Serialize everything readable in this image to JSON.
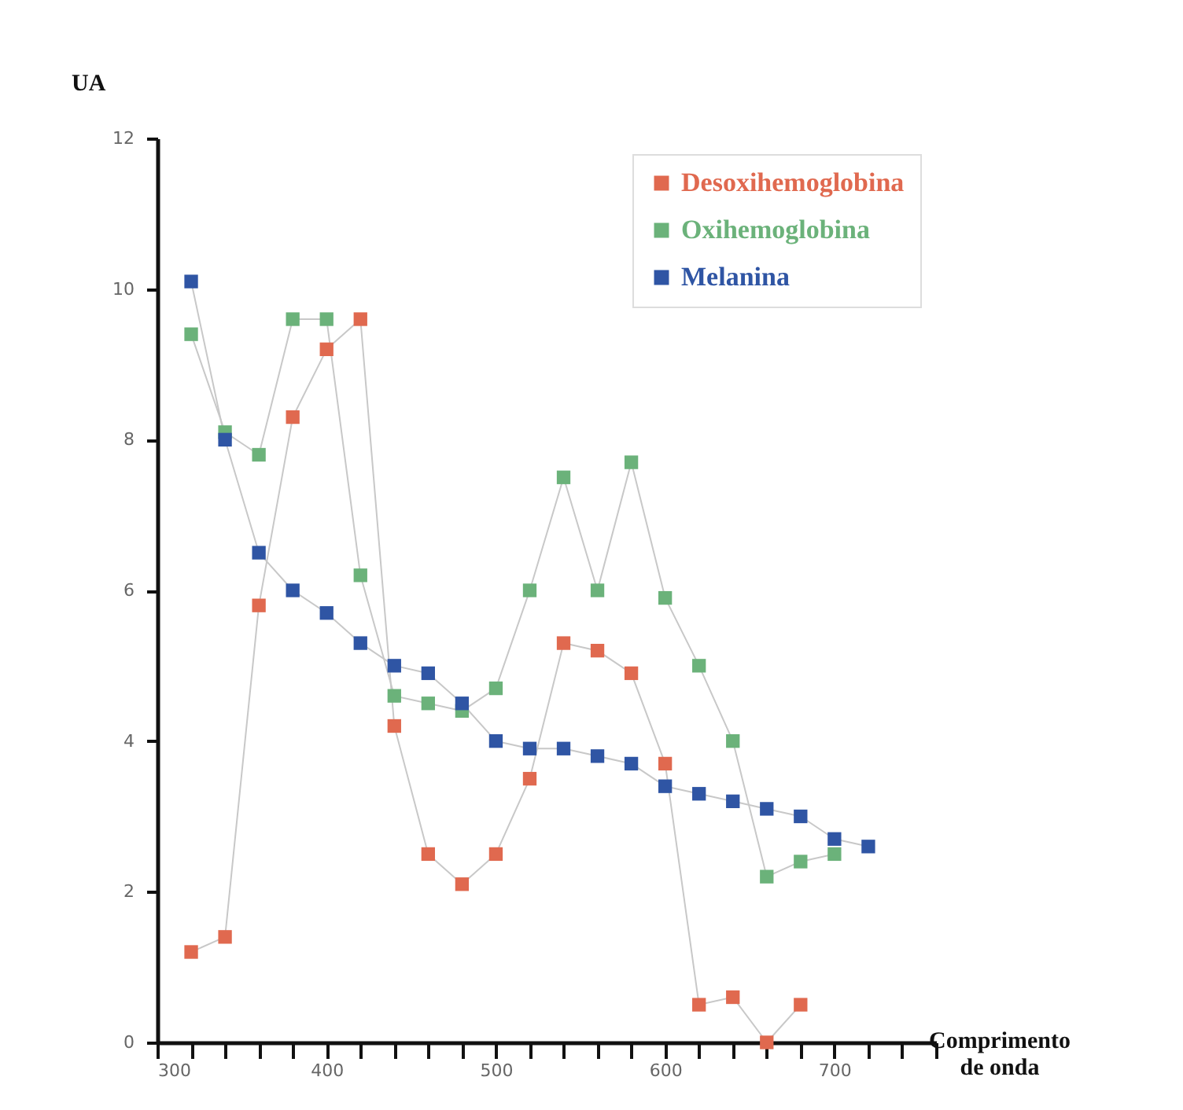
{
  "chart_data": {
    "type": "line",
    "xlabel": "Comprimento de onda",
    "ylabel": "UA",
    "xlim": [
      300,
      760
    ],
    "ylim": [
      0,
      12
    ],
    "xticks": [
      300,
      {
        "value": 320,
        "label": null
      },
      {
        "value": 340,
        "label": null
      },
      {
        "value": 360,
        "label": null
      },
      {
        "value": 380,
        "label": null
      },
      400,
      {
        "value": 420,
        "label": null
      },
      {
        "value": 440,
        "label": null
      },
      {
        "value": 460,
        "label": null
      },
      {
        "value": 480,
        "label": null
      },
      500,
      {
        "value": 520,
        "label": null
      },
      {
        "value": 540,
        "label": null
      },
      {
        "value": 560,
        "label": null
      },
      {
        "value": 580,
        "label": null
      },
      600,
      {
        "value": 620,
        "label": null
      },
      {
        "value": 640,
        "label": null
      },
      {
        "value": 660,
        "label": null
      },
      {
        "value": 680,
        "label": null
      },
      700,
      {
        "value": 720,
        "label": null
      },
      {
        "value": 740,
        "label": null
      },
      {
        "value": 760,
        "label": null
      }
    ],
    "yticks": [
      0,
      2,
      4,
      6,
      8,
      10,
      12
    ],
    "marker": "square",
    "grid": false,
    "legend": "top right",
    "series": [
      {
        "name": "Desoxihemoglobina",
        "color": "#e0694f",
        "x": [
          320,
          340,
          360,
          380,
          400,
          420,
          440,
          460,
          480,
          500,
          520,
          540,
          560,
          580,
          600,
          620,
          640,
          660,
          680
        ],
        "values": [
          1.2,
          1.4,
          5.8,
          8.3,
          9.2,
          9.6,
          4.2,
          2.5,
          2.1,
          2.5,
          3.5,
          5.3,
          5.2,
          4.9,
          3.7,
          0.5,
          0.6,
          0,
          0.5
        ]
      },
      {
        "name": "Oxihemoglobina",
        "color": "#6bb27a",
        "x": [
          320,
          340,
          360,
          380,
          400,
          420,
          440,
          460,
          480,
          500,
          520,
          540,
          560,
          580,
          600,
          620,
          640,
          660,
          680,
          700
        ],
        "values": [
          9.4,
          8.1,
          7.8,
          9.6,
          9.6,
          6.2,
          4.6,
          4.5,
          4.4,
          4.7,
          6.0,
          7.5,
          6.0,
          7.7,
          5.9,
          5.0,
          4.0,
          2.2,
          2.4,
          2.5
        ]
      },
      {
        "name": "Melanina",
        "color": "#2f55a4",
        "x": [
          320,
          340,
          360,
          380,
          400,
          420,
          440,
          460,
          480,
          500,
          520,
          540,
          560,
          580,
          600,
          620,
          640,
          660,
          680,
          700,
          720
        ],
        "values": [
          10.1,
          8.0,
          6.5,
          6.0,
          5.7,
          5.3,
          5.0,
          4.9,
          4.5,
          4.0,
          3.9,
          3.9,
          3.8,
          3.7,
          3.4,
          3.3,
          3.2,
          3.1,
          3.0,
          2.7,
          2.6
        ]
      }
    ]
  }
}
